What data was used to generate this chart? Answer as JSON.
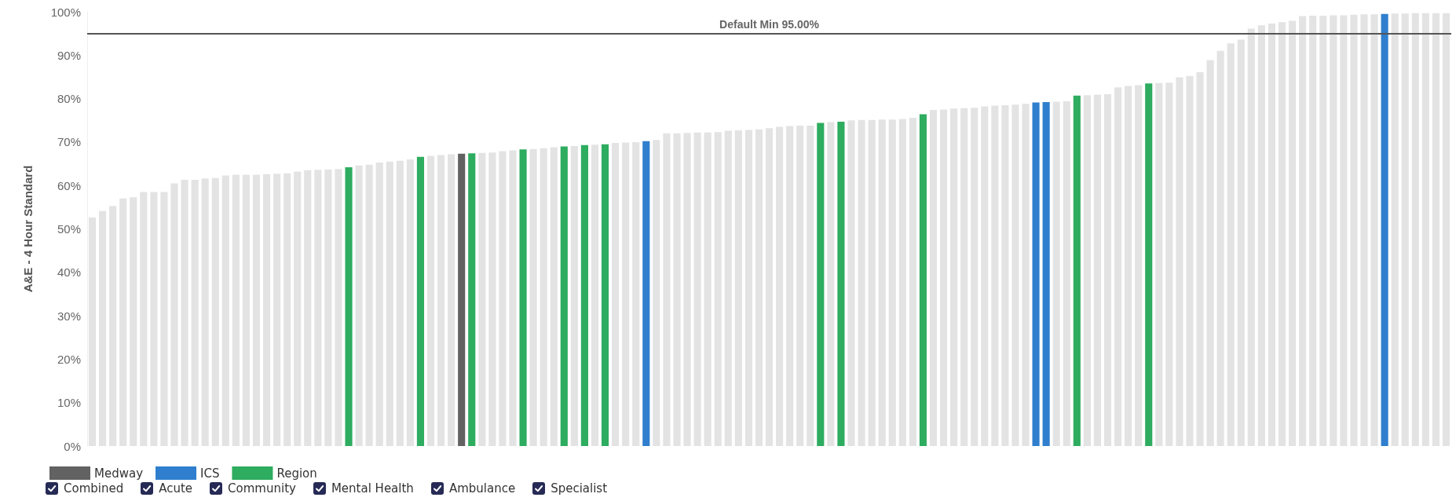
{
  "chart_data": {
    "type": "bar",
    "ylabel": "A&E - 4 Hour Standard",
    "categories": [
      null,
      null,
      null,
      null,
      null,
      null,
      null,
      null,
      null,
      null,
      null,
      null,
      null,
      null,
      null,
      null,
      null,
      null,
      null,
      null,
      null,
      null,
      null,
      null,
      null,
      null,
      null,
      null,
      null,
      null,
      null,
      null,
      null,
      null,
      null,
      null,
      null,
      null,
      null,
      null,
      null,
      null,
      null,
      null,
      null,
      null,
      null,
      null,
      null,
      null,
      null,
      null,
      null,
      null,
      null,
      null,
      null,
      null,
      null,
      null,
      null,
      null,
      null,
      null,
      null,
      null,
      null,
      null,
      null,
      null,
      null,
      null,
      null,
      null,
      null,
      null,
      null,
      null,
      null,
      null,
      null,
      null,
      null,
      null,
      null,
      null,
      null,
      null,
      null,
      null,
      null,
      null,
      null,
      null,
      null,
      null,
      null,
      null,
      null,
      null,
      null,
      null,
      null,
      null,
      null,
      null,
      null,
      null,
      null,
      null,
      null,
      null,
      null,
      null,
      null,
      null,
      null,
      null,
      null,
      null,
      null,
      null,
      null,
      null,
      null,
      null,
      null,
      null,
      null,
      null,
      null,
      null,
      null
    ],
    "series": [
      {
        "color": "#e3e3e3",
        "values": [
          52.6,
          54.1,
          55.3,
          57.0,
          57.3,
          58.5,
          58.5,
          58.5,
          60.5,
          61.3,
          61.3,
          61.6,
          61.7,
          62.3,
          62.5,
          62.5,
          62.5,
          62.6,
          62.7,
          62.8,
          63.2,
          63.5,
          63.6,
          63.7,
          63.8,
          null,
          64.6,
          64.8,
          65.3,
          65.5,
          65.7,
          66.0,
          null,
          66.8,
          67.0,
          67.2,
          null,
          null,
          67.5,
          67.6,
          67.9,
          68.1,
          null,
          68.4,
          68.6,
          68.8,
          null,
          69.1,
          null,
          69.4,
          null,
          69.8,
          69.9,
          70.0,
          null,
          70.5,
          72.0,
          72.0,
          72.1,
          72.2,
          72.2,
          72.3,
          72.6,
          72.7,
          72.8,
          72.9,
          73.2,
          73.5,
          73.7,
          73.8,
          73.8,
          null,
          74.6,
          null,
          75.0,
          75.1,
          75.1,
          75.2,
          75.2,
          75.3,
          75.6,
          null,
          77.4,
          77.5,
          77.7,
          77.8,
          77.9,
          78.2,
          78.4,
          78.5,
          78.6,
          78.8,
          null,
          null,
          79.3,
          79.4,
          null,
          80.8,
          80.9,
          81.0,
          82.6,
          82.9,
          83.1,
          null,
          83.6,
          83.7,
          84.9,
          85.2,
          86.1,
          88.9,
          91.0,
          92.7,
          93.6,
          96.1,
          96.9,
          97.3,
          97.6,
          97.9,
          99.0,
          99.1,
          99.1,
          99.2,
          99.2,
          99.3,
          99.4,
          99.4,
          null,
          99.6,
          99.6,
          99.7,
          99.7,
          99.7,
          99.7
        ]
      },
      {
        "name": "Medway",
        "color": "#626262",
        "values": [
          null,
          null,
          null,
          null,
          null,
          null,
          null,
          null,
          null,
          null,
          null,
          null,
          null,
          null,
          null,
          null,
          null,
          null,
          null,
          null,
          null,
          null,
          null,
          null,
          null,
          null,
          null,
          null,
          null,
          null,
          null,
          null,
          null,
          null,
          null,
          null,
          67.3,
          null,
          null,
          null,
          null,
          null,
          null,
          null,
          null,
          null,
          null,
          null,
          null,
          null,
          null,
          null,
          null,
          null,
          null,
          null,
          null,
          null,
          null,
          null,
          null,
          null,
          null,
          null,
          null,
          null,
          null,
          null,
          null,
          null,
          null,
          null,
          null,
          null,
          null,
          null,
          null,
          null,
          null,
          null,
          null,
          null,
          null,
          null,
          null,
          null,
          null,
          null,
          null,
          null,
          null,
          null,
          null,
          null,
          null,
          null,
          null,
          null,
          null,
          null,
          null,
          null,
          null,
          null,
          null,
          null,
          null,
          null,
          null,
          null,
          null,
          null,
          null,
          null,
          null,
          null,
          null,
          null,
          null,
          null,
          null,
          null,
          null,
          null,
          null,
          null,
          null,
          null,
          null,
          null,
          null,
          null,
          null
        ]
      },
      {
        "name": "ICS",
        "color": "#2f7fce",
        "values": [
          null,
          null,
          null,
          null,
          null,
          null,
          null,
          null,
          null,
          null,
          null,
          null,
          null,
          null,
          null,
          null,
          null,
          null,
          null,
          null,
          null,
          null,
          null,
          null,
          null,
          null,
          null,
          null,
          null,
          null,
          null,
          null,
          null,
          null,
          null,
          null,
          null,
          null,
          null,
          null,
          null,
          null,
          null,
          null,
          null,
          null,
          null,
          null,
          null,
          null,
          null,
          null,
          null,
          null,
          70.2,
          null,
          null,
          null,
          null,
          null,
          null,
          null,
          null,
          null,
          null,
          null,
          null,
          null,
          null,
          null,
          null,
          null,
          null,
          null,
          null,
          null,
          null,
          null,
          null,
          null,
          null,
          null,
          null,
          null,
          null,
          null,
          null,
          null,
          null,
          null,
          null,
          null,
          79.1,
          79.2,
          null,
          null,
          null,
          null,
          null,
          null,
          null,
          null,
          null,
          null,
          null,
          null,
          null,
          null,
          null,
          null,
          null,
          null,
          null,
          null,
          null,
          null,
          null,
          null,
          null,
          null,
          null,
          null,
          null,
          null,
          null,
          null,
          99.5,
          null,
          null,
          null,
          null,
          null,
          null
        ]
      },
      {
        "name": "Region",
        "color": "#2eac5f",
        "values": [
          null,
          null,
          null,
          null,
          null,
          null,
          null,
          null,
          null,
          null,
          null,
          null,
          null,
          null,
          null,
          null,
          null,
          null,
          null,
          null,
          null,
          null,
          null,
          null,
          null,
          64.2,
          null,
          null,
          null,
          null,
          null,
          null,
          66.6,
          null,
          null,
          null,
          null,
          67.4,
          null,
          null,
          null,
          null,
          68.3,
          null,
          null,
          null,
          69.0,
          null,
          69.3,
          null,
          69.5,
          null,
          null,
          null,
          null,
          null,
          null,
          null,
          null,
          null,
          null,
          null,
          null,
          null,
          null,
          null,
          null,
          null,
          null,
          null,
          null,
          74.4,
          null,
          74.7,
          null,
          null,
          null,
          null,
          null,
          null,
          null,
          76.4,
          null,
          null,
          null,
          null,
          null,
          null,
          null,
          null,
          null,
          null,
          null,
          null,
          null,
          null,
          80.7,
          null,
          null,
          null,
          null,
          null,
          null,
          83.5,
          null,
          null,
          null,
          null,
          null,
          null,
          null,
          null,
          null,
          null,
          null,
          null,
          null,
          null,
          null,
          null,
          null,
          null,
          null,
          null,
          null,
          null,
          null,
          null,
          null,
          null,
          null,
          null,
          null
        ]
      }
    ],
    "ylim": [
      0,
      100
    ],
    "yticks": [
      {
        "value": 0,
        "label": "0%"
      },
      {
        "value": 10,
        "label": "10%"
      },
      {
        "value": 20,
        "label": "20%"
      },
      {
        "value": 30,
        "label": "30%"
      },
      {
        "value": 40,
        "label": "40%"
      },
      {
        "value": 50,
        "label": "50%"
      },
      {
        "value": 60,
        "label": "60%"
      },
      {
        "value": 70,
        "label": "70%"
      },
      {
        "value": 80,
        "label": "80%"
      },
      {
        "value": 90,
        "label": "90%"
      },
      {
        "value": 100,
        "label": "100%"
      }
    ],
    "ref_lines": [
      {
        "axis": "y",
        "value": 95,
        "label": "Default Min 95.00%",
        "color": "#555555"
      }
    ],
    "grid": false,
    "legend": "bottom left",
    "tick_labels": "y",
    "annotations": [
      "Combined",
      "Acute",
      "Community",
      "Mental Health",
      "Ambulance",
      "Specialist"
    ]
  }
}
